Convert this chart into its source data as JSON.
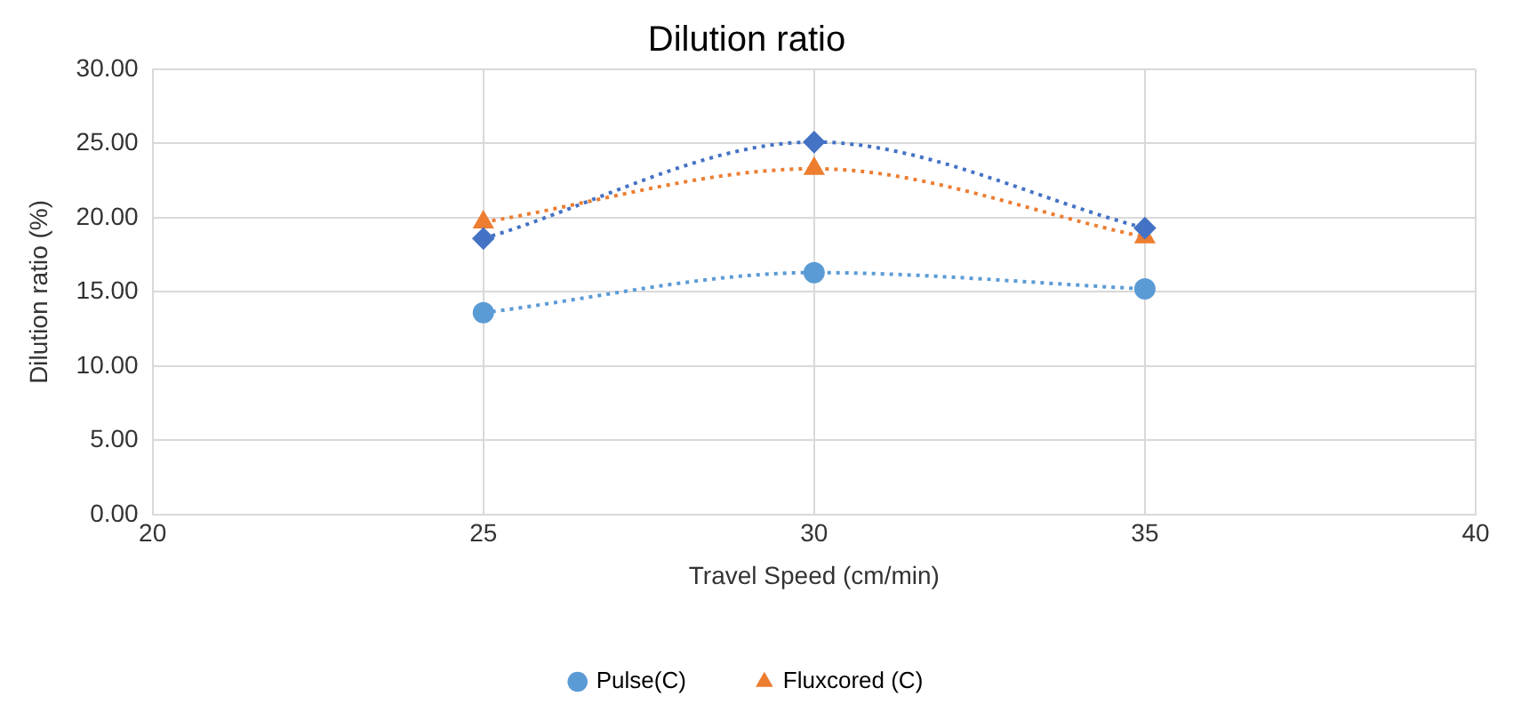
{
  "chart_data": {
    "type": "line",
    "title": "Dilution ratio",
    "xlabel": "Travel Speed (cm/min)",
    "ylabel": "Dilution ratio (%)",
    "x": [
      25,
      30,
      35
    ],
    "series": [
      {
        "color": "#4472c4",
        "marker": "diamond",
        "values": [
          18.6,
          25.1,
          19.3
        ]
      },
      {
        "name": "Pulse(C)",
        "color": "#5b9bd5",
        "marker": "circle",
        "values": [
          13.6,
          16.3,
          15.2
        ]
      },
      {
        "name": "Fluxcored (C)",
        "color": "#ed7d31",
        "marker": "triangle",
        "values": [
          19.7,
          23.3,
          18.7
        ]
      }
    ],
    "xlim": [
      20,
      40
    ],
    "xticks": [
      20,
      25,
      30,
      35,
      40
    ],
    "ylim": [
      0,
      30
    ],
    "yticks": [
      {
        "value": 0,
        "label": "0.00"
      },
      {
        "value": 5,
        "label": "5.00"
      },
      {
        "value": 10,
        "label": "10.00"
      },
      {
        "value": 15,
        "label": "15.00"
      },
      {
        "value": 20,
        "label": "20.00"
      },
      {
        "value": 25,
        "label": "25.00"
      },
      {
        "value": 30,
        "label": "30.00"
      }
    ],
    "grid": true,
    "legend": "bottom",
    "line_style": "dotted"
  }
}
